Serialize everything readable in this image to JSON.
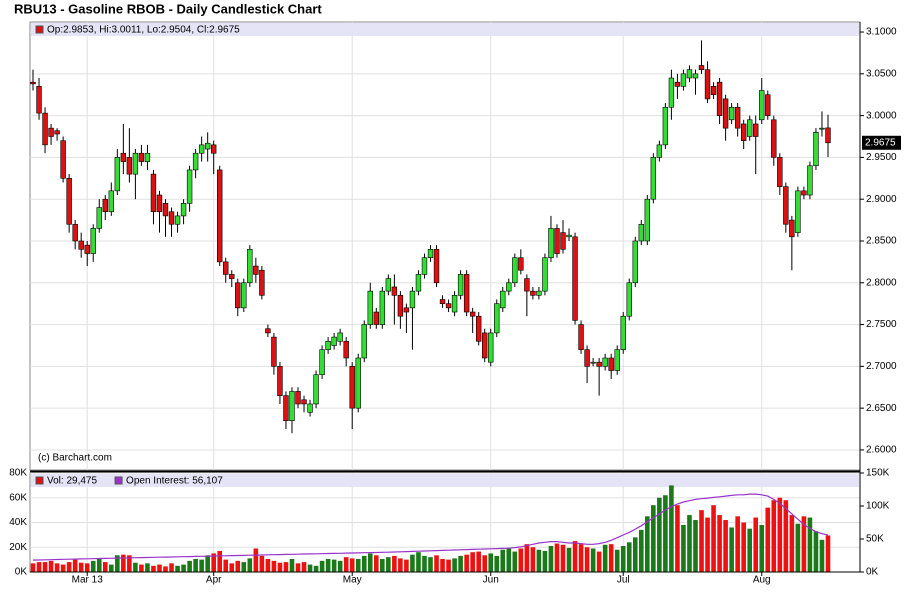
{
  "chart_data": {
    "type": "candlestick",
    "title": "RBU13 - Gasoline RBOB - Daily Candlestick Chart",
    "legend_text": "Op:2.9853, Hi:3.0011, Lo:2.9504, Cl:2.9675",
    "credit": "(c) Barchart.com",
    "last_label": "2.9675",
    "grid": true,
    "up_color": "#33dd33",
    "down_color": "#dd1111",
    "legend_color": "#dd1111",
    "categories": [
      null,
      null,
      null,
      null,
      null,
      null,
      null,
      null,
      null,
      "Mar 13",
      null,
      null,
      null,
      null,
      null,
      null,
      null,
      null,
      null,
      null,
      null,
      null,
      null,
      null,
      null,
      null,
      null,
      null,
      null,
      null,
      "Apr",
      null,
      null,
      null,
      null,
      null,
      null,
      null,
      null,
      null,
      null,
      null,
      null,
      null,
      null,
      null,
      null,
      null,
      null,
      null,
      null,
      null,
      null,
      "May",
      null,
      null,
      null,
      null,
      null,
      null,
      null,
      null,
      null,
      null,
      null,
      null,
      null,
      null,
      null,
      null,
      null,
      null,
      null,
      null,
      null,
      null,
      "Jun",
      null,
      null,
      null,
      null,
      null,
      null,
      null,
      null,
      null,
      null,
      null,
      null,
      null,
      null,
      null,
      null,
      null,
      null,
      null,
      null,
      null,
      "Jul",
      null,
      null,
      null,
      null,
      null,
      null,
      null,
      null,
      null,
      null,
      null,
      null,
      null,
      null,
      null,
      null,
      null,
      null,
      null,
      null,
      null,
      null,
      "Aug",
      null,
      null,
      null,
      null,
      null,
      null,
      null,
      null,
      null,
      null,
      null
    ],
    "ohlc": [
      [
        3.04,
        3.055,
        3.03,
        3.038
      ],
      [
        3.035,
        3.045,
        2.995,
        3.003
      ],
      [
        3.003,
        3.01,
        2.955,
        2.965
      ],
      [
        2.985,
        2.99,
        2.965,
        2.975
      ],
      [
        2.982,
        2.985,
        2.97,
        2.978
      ],
      [
        2.97,
        2.975,
        2.92,
        2.925
      ],
      [
        2.925,
        2.93,
        2.86,
        2.87
      ],
      [
        2.87,
        2.875,
        2.84,
        2.85
      ],
      [
        2.85,
        2.86,
        2.83,
        2.84
      ],
      [
        2.845,
        2.85,
        2.82,
        2.835
      ],
      [
        2.835,
        2.87,
        2.825,
        2.865
      ],
      [
        2.865,
        2.9,
        2.86,
        2.89
      ],
      [
        2.9,
        2.905,
        2.875,
        2.885
      ],
      [
        2.885,
        2.92,
        2.88,
        2.91
      ],
      [
        2.91,
        2.96,
        2.905,
        2.95
      ],
      [
        2.955,
        2.99,
        2.93,
        2.945
      ],
      [
        2.95,
        2.985,
        2.92,
        2.93
      ],
      [
        2.93,
        2.96,
        2.9,
        2.955
      ],
      [
        2.955,
        2.965,
        2.94,
        2.945
      ],
      [
        2.945,
        2.965,
        2.935,
        2.955
      ],
      [
        2.93,
        2.935,
        2.87,
        2.885
      ],
      [
        2.905,
        2.91,
        2.86,
        2.885
      ],
      [
        2.895,
        2.9,
        2.855,
        2.88
      ],
      [
        2.885,
        2.89,
        2.855,
        2.87
      ],
      [
        2.87,
        2.885,
        2.86,
        2.88
      ],
      [
        2.88,
        2.9,
        2.87,
        2.895
      ],
      [
        2.895,
        2.94,
        2.885,
        2.935
      ],
      [
        2.935,
        2.96,
        2.925,
        2.955
      ],
      [
        2.955,
        2.975,
        2.945,
        2.965
      ],
      [
        2.96,
        2.98,
        2.945,
        2.967
      ],
      [
        2.965,
        2.97,
        2.93,
        2.955
      ],
      [
        2.935,
        2.94,
        2.82,
        2.825
      ],
      [
        2.825,
        2.83,
        2.8,
        2.81
      ],
      [
        2.81,
        2.815,
        2.795,
        2.805
      ],
      [
        2.8,
        2.805,
        2.76,
        2.77
      ],
      [
        2.77,
        2.805,
        2.765,
        2.8
      ],
      [
        2.8,
        2.845,
        2.795,
        2.84
      ],
      [
        2.82,
        2.83,
        2.8,
        2.81
      ],
      [
        2.815,
        2.82,
        2.78,
        2.785
      ],
      [
        2.745,
        2.75,
        2.735,
        2.74
      ],
      [
        2.735,
        2.74,
        2.69,
        2.7
      ],
      [
        2.7,
        2.705,
        2.655,
        2.665
      ],
      [
        2.665,
        2.67,
        2.625,
        2.635
      ],
      [
        2.635,
        2.675,
        2.62,
        2.67
      ],
      [
        2.67,
        2.675,
        2.65,
        2.655
      ],
      [
        2.66,
        2.665,
        2.645,
        2.655
      ],
      [
        2.645,
        2.66,
        2.64,
        2.655
      ],
      [
        2.655,
        2.695,
        2.65,
        2.69
      ],
      [
        2.69,
        2.725,
        2.685,
        2.72
      ],
      [
        2.72,
        2.735,
        2.715,
        2.73
      ],
      [
        2.725,
        2.74,
        2.72,
        2.735
      ],
      [
        2.73,
        2.745,
        2.725,
        2.74
      ],
      [
        2.73,
        2.735,
        2.7,
        2.71
      ],
      [
        2.7,
        2.705,
        2.625,
        2.65
      ],
      [
        2.65,
        2.715,
        2.645,
        2.71
      ],
      [
        2.71,
        2.755,
        2.705,
        2.75
      ],
      [
        2.75,
        2.8,
        2.745,
        2.79
      ],
      [
        2.765,
        2.77,
        2.745,
        2.75
      ],
      [
        2.75,
        2.795,
        2.745,
        2.79
      ],
      [
        2.79,
        2.81,
        2.785,
        2.805
      ],
      [
        2.795,
        2.81,
        2.75,
        2.785
      ],
      [
        2.785,
        2.79,
        2.745,
        2.76
      ],
      [
        2.77,
        2.775,
        2.74,
        2.765
      ],
      [
        2.77,
        2.795,
        2.72,
        2.79
      ],
      [
        2.79,
        2.815,
        2.785,
        2.81
      ],
      [
        2.81,
        2.835,
        2.805,
        2.83
      ],
      [
        2.83,
        2.845,
        2.825,
        2.84
      ],
      [
        2.84,
        2.845,
        2.795,
        2.8
      ],
      [
        2.78,
        2.785,
        2.77,
        2.775
      ],
      [
        2.775,
        2.78,
        2.765,
        2.77
      ],
      [
        2.765,
        2.79,
        2.76,
        2.785
      ],
      [
        2.785,
        2.815,
        2.78,
        2.81
      ],
      [
        2.81,
        2.815,
        2.76,
        2.765
      ],
      [
        2.765,
        2.77,
        2.74,
        2.76
      ],
      [
        2.76,
        2.765,
        2.725,
        2.73
      ],
      [
        2.74,
        2.745,
        2.705,
        2.71
      ],
      [
        2.705,
        2.745,
        2.7,
        2.74
      ],
      [
        2.74,
        2.78,
        2.735,
        2.775
      ],
      [
        2.77,
        2.795,
        2.765,
        2.79
      ],
      [
        2.79,
        2.805,
        2.785,
        2.8
      ],
      [
        2.8,
        2.835,
        2.795,
        2.83
      ],
      [
        2.83,
        2.84,
        2.81,
        2.815
      ],
      [
        2.805,
        2.81,
        2.76,
        2.79
      ],
      [
        2.79,
        2.795,
        2.78,
        2.785
      ],
      [
        2.785,
        2.795,
        2.78,
        2.79
      ],
      [
        2.79,
        2.835,
        2.785,
        2.83
      ],
      [
        2.83,
        2.88,
        2.825,
        2.865
      ],
      [
        2.865,
        2.87,
        2.83,
        2.835
      ],
      [
        2.86,
        2.875,
        2.835,
        2.84
      ],
      [
        2.855,
        2.865,
        2.85,
        2.857
      ],
      [
        2.855,
        2.86,
        2.75,
        2.755
      ],
      [
        2.75,
        2.755,
        2.715,
        2.72
      ],
      [
        2.72,
        2.725,
        2.68,
        2.7
      ],
      [
        2.705,
        2.71,
        2.7,
        2.705
      ],
      [
        2.705,
        2.71,
        2.665,
        2.7
      ],
      [
        2.7,
        2.715,
        2.695,
        2.71
      ],
      [
        2.71,
        2.715,
        2.685,
        2.695
      ],
      [
        2.695,
        2.725,
        2.69,
        2.72
      ],
      [
        2.72,
        2.765,
        2.715,
        2.76
      ],
      [
        2.76,
        2.805,
        2.755,
        2.8
      ],
      [
        2.8,
        2.855,
        2.795,
        2.85
      ],
      [
        2.85,
        2.875,
        2.845,
        2.87
      ],
      [
        2.85,
        2.905,
        2.845,
        2.9
      ],
      [
        2.9,
        2.955,
        2.895,
        2.95
      ],
      [
        2.95,
        2.97,
        2.945,
        2.965
      ],
      [
        2.965,
        3.015,
        2.96,
        3.01
      ],
      [
        3.01,
        3.055,
        2.995,
        3.045
      ],
      [
        3.04,
        3.05,
        3.02,
        3.035
      ],
      [
        3.035,
        3.055,
        3.03,
        3.05
      ],
      [
        3.045,
        3.06,
        3.04,
        3.055
      ],
      [
        3.045,
        3.055,
        3.025,
        3.05
      ],
      [
        3.06,
        3.09,
        3.05,
        3.055
      ],
      [
        3.055,
        3.065,
        3.015,
        3.02
      ],
      [
        3.035,
        3.04,
        3.02,
        3.025
      ],
      [
        3.04,
        3.045,
        2.99,
        3.0
      ],
      [
        3.02,
        3.025,
        2.97,
        2.985
      ],
      [
        2.995,
        3.015,
        2.99,
        3.01
      ],
      [
        3.01,
        3.015,
        2.975,
        2.985
      ],
      [
        2.99,
        2.995,
        2.96,
        2.97
      ],
      [
        2.975,
        3.0,
        2.97,
        2.995
      ],
      [
        2.99,
        3.0,
        2.93,
        2.975
      ],
      [
        2.995,
        3.045,
        2.99,
        3.03
      ],
      [
        3.025,
        3.03,
        2.995,
        3.0
      ],
      [
        2.995,
        3.0,
        2.94,
        2.95
      ],
      [
        2.95,
        2.955,
        2.905,
        2.915
      ],
      [
        2.915,
        2.92,
        2.86,
        2.87
      ],
      [
        2.875,
        2.88,
        2.815,
        2.855
      ],
      [
        2.86,
        2.915,
        2.855,
        2.91
      ],
      [
        2.91,
        2.915,
        2.9,
        2.905
      ],
      [
        2.905,
        2.945,
        2.9,
        2.94
      ],
      [
        2.94,
        2.985,
        2.935,
        2.98
      ],
      [
        2.985,
        3.005,
        2.975,
        2.985
      ],
      [
        2.9853,
        3.0011,
        2.9504,
        2.9675
      ]
    ],
    "ylim": [
      2.576,
      3.112
    ],
    "yticks": [
      {
        "value": 2.6,
        "label": "2.6000"
      },
      {
        "value": 2.65,
        "label": "2.6500"
      },
      {
        "value": 2.7,
        "label": "2.7000"
      },
      {
        "value": 2.75,
        "label": "2.7500"
      },
      {
        "value": 2.8,
        "label": "2.8000"
      },
      {
        "value": 2.85,
        "label": "2.8500"
      },
      {
        "value": 2.9,
        "label": "2.9000"
      },
      {
        "value": 2.95,
        "label": "2.9500"
      },
      {
        "value": 3.0,
        "label": "3.0000"
      },
      {
        "value": 3.05,
        "label": "3.0500"
      },
      {
        "value": 3.1,
        "label": "3.1000"
      }
    ],
    "volume_panel": {
      "up_color": "#1a7a1a",
      "down_color": "#ee1111",
      "ylim": [
        0,
        80000
      ],
      "yticks": [
        {
          "value": 0,
          "label": "0K"
        },
        {
          "value": 20000,
          "label": "20K"
        },
        {
          "value": 40000,
          "label": "40K"
        },
        {
          "value": 60000,
          "label": "60K"
        },
        {
          "value": 80000,
          "label": "80K"
        }
      ],
      "y2lim": [
        0,
        150000
      ],
      "y2ticks": [
        {
          "value": 0,
          "label": "0K"
        },
        {
          "value": 50000,
          "label": "50K"
        },
        {
          "value": 100000,
          "label": "100K"
        },
        {
          "value": 150000,
          "label": "150K"
        }
      ],
      "series": [
        {
          "name": "Vol: 29,475",
          "color": "#dd1111",
          "values": [
            7000,
            8000,
            8000,
            9000,
            7000,
            6000,
            8000,
            10000,
            7500,
            7000,
            9000,
            10500,
            8000,
            6000,
            13500,
            14000,
            13500,
            7500,
            6000,
            7000,
            5000,
            6000,
            4500,
            7000,
            5000,
            6000,
            9000,
            10500,
            10000,
            13500,
            15000,
            17000,
            10000,
            7000,
            9000,
            8000,
            11000,
            19000,
            13000,
            10500,
            9000,
            7500,
            8000,
            10500,
            7000,
            8000,
            6000,
            5000,
            9000,
            10500,
            10000,
            9000,
            12000,
            11000,
            10500,
            13000,
            15000,
            13500,
            10500,
            12000,
            13000,
            11000,
            10000,
            14000,
            16000,
            13000,
            12000,
            13500,
            10500,
            10000,
            11000,
            13000,
            14000,
            16000,
            16500,
            13500,
            15000,
            13000,
            18000,
            19500,
            16500,
            19000,
            22500,
            20000,
            18000,
            17000,
            21000,
            23000,
            22000,
            19500,
            25000,
            22500,
            20000,
            19000,
            16500,
            22000,
            22500,
            18000,
            21000,
            24000,
            28000,
            34000,
            45000,
            54000,
            60000,
            62000,
            70000,
            54000,
            38000,
            46000,
            42000,
            50000,
            44000,
            54000,
            46000,
            42000,
            36000,
            45000,
            40000,
            35000,
            44000,
            38000,
            52000,
            58000,
            60000,
            58000,
            46000,
            39000,
            45000,
            44000,
            33000,
            26000,
            29475
          ]
        },
        {
          "name": "Open Interest: 56,107",
          "color": "#9933cc",
          "axis": "y2",
          "values": [
            18000,
            18200,
            18500,
            18700,
            19000,
            19200,
            19400,
            19600,
            19800,
            20000,
            20200,
            20400,
            20600,
            20800,
            21000,
            21200,
            21400,
            21600,
            21800,
            22000,
            22200,
            22400,
            22600,
            22800,
            23000,
            23200,
            23400,
            23600,
            23800,
            24000,
            24200,
            24400,
            24600,
            24800,
            25000,
            25200,
            25400,
            25600,
            25800,
            26000,
            26200,
            26400,
            26600,
            26800,
            27000,
            27200,
            27400,
            27600,
            27800,
            28000,
            28200,
            28400,
            28600,
            28800,
            29000,
            29200,
            29400,
            29600,
            29800,
            30000,
            30300,
            30600,
            30900,
            31200,
            31500,
            31800,
            32100,
            32400,
            32700,
            33000,
            33300,
            33600,
            33900,
            34200,
            34500,
            34800,
            35100,
            35400,
            35700,
            36000,
            37000,
            38000,
            40000,
            42000,
            44000,
            45000,
            46000,
            46000,
            45000,
            44000,
            44000,
            43000,
            42000,
            42000,
            43000,
            45000,
            48000,
            52000,
            56000,
            60000,
            65000,
            70000,
            76000,
            82000,
            88000,
            94000,
            99000,
            103000,
            106000,
            108000,
            110000,
            111000,
            112000,
            113000,
            114000,
            115000,
            116000,
            117000,
            117000,
            118000,
            118000,
            117000,
            115000,
            110000,
            104000,
            96000,
            88000,
            80000,
            72000,
            66000,
            61000,
            58000,
            56107
          ]
        }
      ]
    }
  }
}
